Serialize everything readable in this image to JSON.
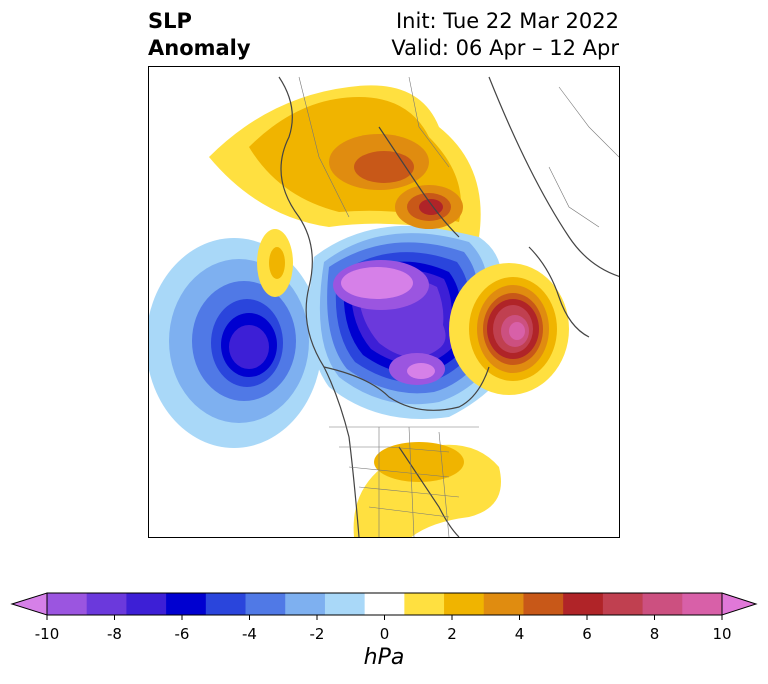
{
  "title": {
    "line1": "SLP",
    "line2": "Anomaly",
    "init": "Init: Tue 22 Mar 2022",
    "valid": "Valid: 06 Apr – 12 Apr"
  },
  "colorbar": {
    "units": "hPa",
    "ticks": [
      "-10",
      "-8",
      "-6",
      "-4",
      "-2",
      "0",
      "2",
      "4",
      "6",
      "8",
      "10"
    ],
    "colors": [
      "#d680e8",
      "#9b55e0",
      "#6b39dc",
      "#3d1fd6",
      "#0000d0",
      "#2a45dc",
      "#5079e6",
      "#7eb0f0",
      "#a9d8f8",
      "#ffffff",
      "#ffe040",
      "#f0b400",
      "#e08c10",
      "#c85818",
      "#b02428",
      "#c04050",
      "#cc5080",
      "#d860a8",
      "#e078d8"
    ]
  },
  "map": {
    "anomalies": [
      {
        "id": "north-pacific-low",
        "sign": "negative",
        "peak": -7
      },
      {
        "id": "canada-arctic-low",
        "sign": "negative",
        "peak": -10
      },
      {
        "id": "hudson-bay-low",
        "sign": "negative",
        "peak": -10
      },
      {
        "id": "siberia-high",
        "sign": "positive",
        "peak": 6
      },
      {
        "id": "north-atlantic-high",
        "sign": "positive",
        "peak": 9
      },
      {
        "id": "eastern-us-high",
        "sign": "positive",
        "peak": 3
      },
      {
        "id": "alaska-high",
        "sign": "positive",
        "peak": 2
      }
    ]
  }
}
